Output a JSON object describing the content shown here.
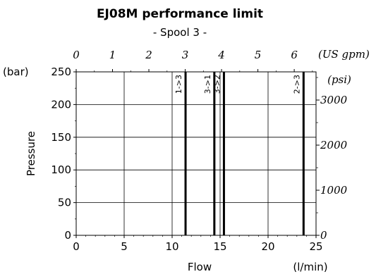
{
  "chart_data": {
    "type": "line",
    "title": "EJ08M performance limit",
    "subtitle": "- Spool 3 -",
    "xlabel": "Flow",
    "xunit": "(l/min)",
    "ylabel": "Pressure",
    "yunit": "(bar)",
    "xlim": [
      0,
      25
    ],
    "ylim": [
      0,
      250
    ],
    "x_ticks": [
      "0",
      "5",
      "10",
      "15",
      "20",
      "25"
    ],
    "y_ticks": [
      "0",
      "50",
      "100",
      "150",
      "200",
      "250"
    ],
    "grid": true,
    "top_axis": {
      "unit": "(US gpm)",
      "range": [
        0,
        6.6
      ],
      "ticks": [
        "0",
        "1",
        "2",
        "3",
        "4",
        "5",
        "6"
      ]
    },
    "right_axis": {
      "unit": "(psi)",
      "range": [
        0,
        3625
      ],
      "ticks": [
        "0",
        "1000",
        "2000",
        "3000"
      ]
    },
    "series": [
      {
        "name": "1->3",
        "x": [
          11.4,
          11.4
        ],
        "y": [
          0,
          250
        ]
      },
      {
        "name": "3->1",
        "x": [
          14.4,
          14.4
        ],
        "y": [
          0,
          250
        ]
      },
      {
        "name": "3->2",
        "x": [
          15.4,
          15.4
        ],
        "y": [
          0,
          250
        ]
      },
      {
        "name": "2->3",
        "x": [
          23.7,
          23.7
        ],
        "y": [
          0,
          250
        ]
      }
    ]
  }
}
